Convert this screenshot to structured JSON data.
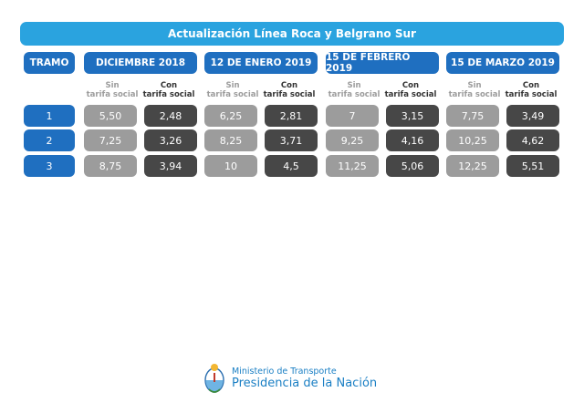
{
  "title": "Actualización Línea Roca y Belgrano Sur",
  "tramo_header": "TRAMO",
  "periods": [
    {
      "label": "DICIEMBRE 2018",
      "sin_label": "Sin\ntarifa social",
      "con_label": "Con\ntarifa social"
    },
    {
      "label": "12 DE ENERO 2019",
      "sin_label": "Sin\ntarifa social",
      "con_label": "Con\ntarifa social"
    },
    {
      "label": "15 DE FEBRERO 2019",
      "sin_label": "Sin\ntarifa social",
      "con_label": "Con\ntarifa social"
    },
    {
      "label": "15 DE MARZO 2019",
      "sin_label": "Sin\ntarifa social",
      "con_label": "Con\ntarifa social"
    }
  ],
  "rows": [
    {
      "tramo": "1",
      "values": [
        [
          "5,50",
          "2,48"
        ],
        [
          "6,25",
          "2,81"
        ],
        [
          "7",
          "3,15"
        ],
        [
          "7,75",
          "3,49"
        ]
      ]
    },
    {
      "tramo": "2",
      "values": [
        [
          "7,25",
          "3,26"
        ],
        [
          "8,25",
          "3,71"
        ],
        [
          "9,25",
          "4,16"
        ],
        [
          "10,25",
          "4,62"
        ]
      ]
    },
    {
      "tramo": "3",
      "values": [
        [
          "8,75",
          "3,94"
        ],
        [
          "10",
          "4,5"
        ],
        [
          "11,25",
          "5,06"
        ],
        [
          "12,25",
          "5,51"
        ]
      ]
    }
  ],
  "footer": {
    "ministry": "Ministerio de Transporte",
    "presidency": "Presidencia de la Nación"
  },
  "colors": {
    "banner": "#2aa3df",
    "header": "#1f6fc0",
    "sin": "#9c9c9c",
    "con": "#474747",
    "footer_text": "#1a7fc4"
  }
}
